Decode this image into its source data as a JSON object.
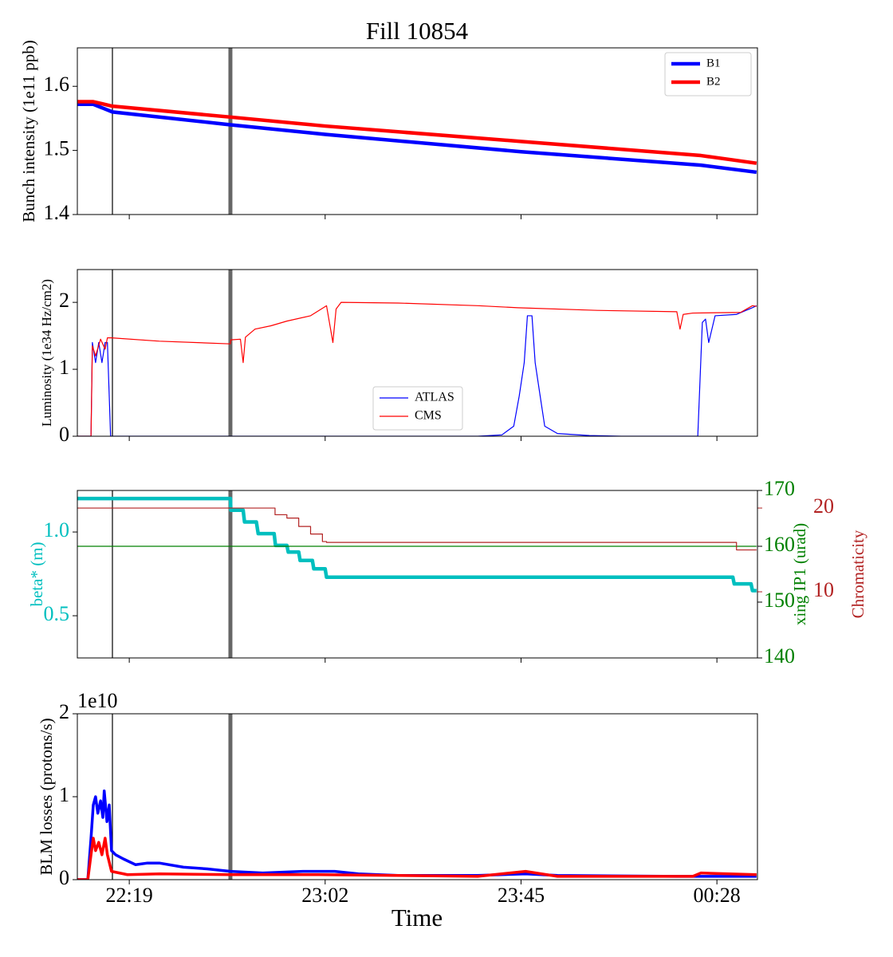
{
  "chart_data": [
    {
      "type": "line",
      "title": "Fill 10854",
      "ylabel": "Bunch intensity (1e11 ppb)",
      "ylim": [
        1.4,
        1.66
      ],
      "yticks": [
        1.4,
        1.5,
        1.6
      ],
      "legend": "upper right",
      "series": [
        {
          "name": "B1",
          "color": "#0000ff",
          "x": [
            1327.6,
            1331.1,
            1335.3,
            1361.2,
            1382.0,
            1425.0,
            1464.5,
            1476.7
          ],
          "values": [
            1.572,
            1.572,
            1.56,
            1.54,
            1.525,
            1.498,
            1.477,
            1.466
          ]
        },
        {
          "name": "B2",
          "color": "#ff0000",
          "x": [
            1327.6,
            1331.1,
            1335.3,
            1361.2,
            1382.0,
            1425.0,
            1464.5,
            1476.7
          ],
          "values": [
            1.576,
            1.576,
            1.569,
            1.552,
            1.538,
            1.514,
            1.492,
            1.48
          ]
        }
      ]
    },
    {
      "type": "line",
      "ylabel": "Luminosity (1e34 Hz/cm2)",
      "ylim": [
        0,
        2.49
      ],
      "yticks": [
        0,
        1,
        2
      ],
      "legend": "lower center",
      "series": [
        {
          "name": "ATLAS",
          "color": "#0000ff",
          "x": [
            1327.6,
            1330.6,
            1330.9,
            1331.6,
            1332.3,
            1333.0,
            1333.7,
            1334.2,
            1334.9,
            1415.5,
            1420.8,
            1423.4,
            1424.6,
            1425.7,
            1426.4,
            1427.4,
            1428.1,
            1429.2,
            1430.2,
            1433.0,
            1440.0,
            1447.0,
            1463.8,
            1464.8,
            1465.5,
            1466.2,
            1466.9,
            1467.6,
            1472.3,
            1475.8,
            1476.7
          ],
          "values": [
            0,
            0,
            1.4,
            1.1,
            1.4,
            1.1,
            1.4,
            1.4,
            0,
            0,
            0.02,
            0.15,
            0.6,
            1.1,
            1.8,
            1.8,
            1.1,
            0.6,
            0.15,
            0.04,
            0.01,
            0,
            0,
            1.7,
            1.75,
            1.4,
            1.6,
            1.8,
            1.82,
            1.92,
            1.95
          ]
        },
        {
          "name": "CMS",
          "color": "#ff0000",
          "x": [
            1327.6,
            1330.6,
            1330.9,
            1331.6,
            1332.7,
            1333.7,
            1334.2,
            1335.1,
            1345.6,
            1361.2,
            1361.3,
            1363.4,
            1364.0,
            1364.5,
            1366.6,
            1370.1,
            1373.6,
            1378.8,
            1382.3,
            1383.7,
            1384.4,
            1385.5,
            1398.0,
            1415.5,
            1424.3,
            1441.7,
            1459.2,
            1459.9,
            1460.6,
            1462.7,
            1473.2,
            1475.8,
            1476.7
          ],
          "values": [
            0,
            0,
            1.35,
            1.2,
            1.45,
            1.3,
            1.47,
            1.47,
            1.42,
            1.38,
            1.44,
            1.45,
            1.1,
            1.48,
            1.6,
            1.65,
            1.72,
            1.8,
            1.95,
            1.4,
            1.9,
            2.0,
            1.99,
            1.95,
            1.92,
            1.88,
            1.86,
            1.6,
            1.82,
            1.84,
            1.85,
            1.95,
            1.94
          ]
        }
      ]
    },
    {
      "type": "line",
      "ylabel": "beta* (m)",
      "y2label": "xing IP1 (urad)",
      "y3label": "Chromaticity",
      "ylim": [
        0.248,
        1.248
      ],
      "yticks": [
        0.5,
        {
          "value": 1,
          "label": "1.0"
        }
      ],
      "y2lim": [
        140,
        170
      ],
      "y2ticks": [
        140,
        150,
        160,
        170
      ],
      "y3lim": [
        2.1,
        22.1
      ],
      "y3ticks": [
        10,
        20
      ],
      "series": [
        {
          "color": "#00bfbf",
          "axis": "y",
          "x": [
            1327.6,
            1361.2,
            1361.3,
            1364.0,
            1364.3,
            1366.9,
            1367.3,
            1370.8,
            1371.1,
            1373.6,
            1373.9,
            1376.2,
            1376.5,
            1379.2,
            1379.5,
            1382.0,
            1382.3,
            1471.5,
            1471.8,
            1475.5,
            1475.8,
            1476.7
          ],
          "values": [
            1.2,
            1.2,
            1.13,
            1.13,
            1.06,
            1.06,
            0.99,
            0.99,
            0.92,
            0.92,
            0.88,
            0.88,
            0.83,
            0.83,
            0.78,
            0.78,
            0.73,
            0.73,
            0.69,
            0.69,
            0.65,
            0.65
          ]
        },
        {
          "color": "#008000",
          "axis": "y2",
          "x": [
            1327.6,
            1476.7
          ],
          "values": [
            160,
            160
          ]
        },
        {
          "color": "#b22222",
          "axis": "y3",
          "drawstyle": "steps-post",
          "x": [
            1327.6,
            1370.1,
            1371.0,
            1373.6,
            1376.2,
            1378.8,
            1381.4,
            1382.3,
            1471.5,
            1472.3,
            1476.7
          ],
          "values": [
            20,
            20,
            19.2,
            18.8,
            17.8,
            16.9,
            16,
            15.9,
            15.9,
            15,
            15
          ]
        }
      ]
    },
    {
      "type": "line",
      "ylabel": "BLM losses (protons/s)",
      "xlabel": "Time",
      "y_offset_label": "1e10",
      "ylim": [
        0,
        20000000000
      ],
      "yticks": [
        0,
        {
          "value": 10000000000,
          "label": "1"
        },
        {
          "value": 20000000000,
          "label": "2"
        }
      ],
      "xlim": [
        1327.6,
        1476.9
      ],
      "xticks": [
        {
          "value": 1339,
          "label": "22:19"
        },
        {
          "value": 1382,
          "label": "23:02"
        },
        {
          "value": 1425,
          "label": "23:45"
        },
        {
          "value": 1468,
          "label": "00:28"
        }
      ],
      "vlines": [
        1335.3,
        1361.2
      ],
      "series": [
        {
          "color": "#0000ff",
          "x": [
            1327.6,
            1329.9,
            1330.6,
            1331.1,
            1331.6,
            1332.1,
            1332.7,
            1333.2,
            1333.5,
            1334.1,
            1334.6,
            1335.1,
            1336.0,
            1337.7,
            1340.4,
            1343.0,
            1345.6,
            1350.9,
            1356.1,
            1361.2,
            1368.3,
            1377.1,
            1384.1,
            1389.3,
            1398.0,
            1415.5,
            1426.0,
            1433.0,
            1459.2,
            1476.7
          ],
          "values": [
            0,
            0,
            5000000000.0,
            9000000000.0,
            10000000000.0,
            8000000000.0,
            9500000000.0,
            7500000000.0,
            10700000000.0,
            7000000000.0,
            9000000000.0,
            3500000000.0,
            3000000000.0,
            2500000000.0,
            1800000000.0,
            2000000000.0,
            2000000000.0,
            1500000000.0,
            1300000000.0,
            1000000000.0,
            800000000.0,
            1000000000.0,
            1000000000.0,
            700000000.0,
            500000000.0,
            500000000.0,
            700000000.0,
            500000000.0,
            400000000.0,
            400000000.0
          ]
        },
        {
          "color": "#ff0000",
          "x": [
            1327.6,
            1329.9,
            1330.6,
            1331.1,
            1331.6,
            1332.3,
            1333.0,
            1333.7,
            1334.2,
            1335.1,
            1338.6,
            1345.6,
            1361.2,
            1380.6,
            1415.5,
            1426.0,
            1433.0,
            1462.7,
            1464.5,
            1476.7
          ],
          "values": [
            0,
            0,
            3000000000.0,
            5000000000.0,
            3500000000.0,
            4500000000.0,
            3000000000.0,
            5000000000.0,
            3000000000.0,
            1000000000.0,
            600000000.0,
            700000000.0,
            600000000.0,
            600000000.0,
            400000000.0,
            1000000000.0,
            400000000.0,
            400000000.0,
            800000000.0,
            600000000.0
          ]
        }
      ]
    }
  ]
}
